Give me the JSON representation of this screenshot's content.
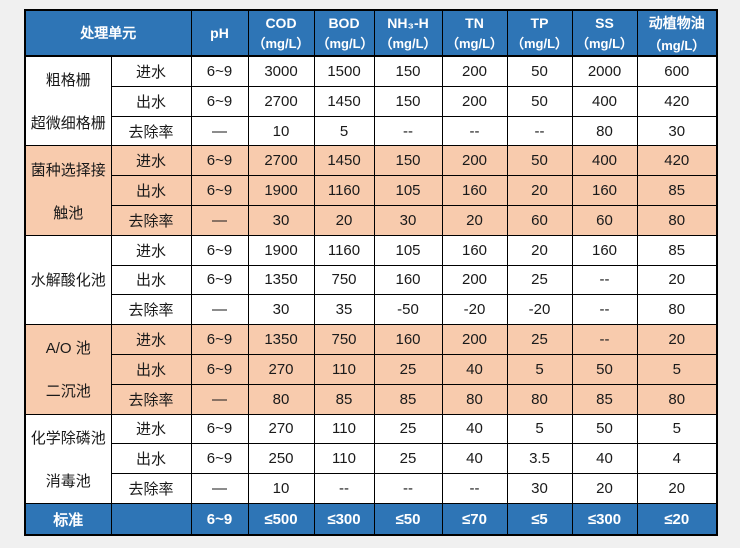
{
  "colors": {
    "header_bg": "#2E75B6",
    "header_text": "#FFFFFF",
    "band_bg": "#F8CBAD",
    "row_bg": "#FFFFFF",
    "border": "#000000",
    "page_bg": "#F0F0F0",
    "body_text": "#1A1A1A"
  },
  "table": {
    "header": {
      "unit_label": "处理单元",
      "columns": [
        {
          "id": "ph",
          "line1": "pH",
          "line2": ""
        },
        {
          "id": "cod",
          "line1": "COD",
          "line2": "（mg/L）"
        },
        {
          "id": "bod",
          "line1": "BOD",
          "line2": "（mg/L）"
        },
        {
          "id": "nh3h",
          "line1": "NH₃-H",
          "line2": "（mg/L）"
        },
        {
          "id": "tn",
          "line1": "TN",
          "line2": "（mg/L）"
        },
        {
          "id": "tp",
          "line1": "TP",
          "line2": "（mg/L）"
        },
        {
          "id": "ss",
          "line1": "SS",
          "line2": "（mg/L）"
        },
        {
          "id": "oil",
          "line1": "动植物油",
          "line2": "（mg/L）"
        }
      ]
    },
    "groups": [
      {
        "unit_lines": [
          "粗格栅",
          "超微细格栅"
        ],
        "band": false,
        "rows": [
          {
            "label": "进水",
            "values": [
              "6~9",
              "3000",
              "1500",
              "150",
              "200",
              "50",
              "2000",
              "600"
            ]
          },
          {
            "label": "出水",
            "values": [
              "6~9",
              "2700",
              "1450",
              "150",
              "200",
              "50",
              "400",
              "420"
            ]
          },
          {
            "label": "去除率",
            "values": [
              "—",
              "10",
              "5",
              "--",
              "--",
              "--",
              "80",
              "30"
            ]
          }
        ]
      },
      {
        "unit_lines": [
          "菌种选择接",
          "触池"
        ],
        "band": true,
        "rows": [
          {
            "label": "进水",
            "values": [
              "6~9",
              "2700",
              "1450",
              "150",
              "200",
              "50",
              "400",
              "420"
            ]
          },
          {
            "label": "出水",
            "values": [
              "6~9",
              "1900",
              "1160",
              "105",
              "160",
              "20",
              "160",
              "85"
            ]
          },
          {
            "label": "去除率",
            "values": [
              "—",
              "30",
              "20",
              "30",
              "20",
              "60",
              "60",
              "80"
            ]
          }
        ]
      },
      {
        "unit_lines": [
          "水解酸化池"
        ],
        "band": false,
        "rows": [
          {
            "label": "进水",
            "values": [
              "6~9",
              "1900",
              "1160",
              "105",
              "160",
              "20",
              "160",
              "85"
            ]
          },
          {
            "label": "出水",
            "values": [
              "6~9",
              "1350",
              "750",
              "160",
              "200",
              "25",
              "--",
              "20"
            ]
          },
          {
            "label": "去除率",
            "values": [
              "—",
              "30",
              "35",
              "-50",
              "-20",
              "-20",
              "--",
              "80"
            ]
          }
        ]
      },
      {
        "unit_lines": [
          "A/O 池",
          "二沉池"
        ],
        "band": true,
        "rows": [
          {
            "label": "进水",
            "values": [
              "6~9",
              "1350",
              "750",
              "160",
              "200",
              "25",
              "--",
              "20"
            ]
          },
          {
            "label": "出水",
            "values": [
              "6~9",
              "270",
              "110",
              "25",
              "40",
              "5",
              "50",
              "5"
            ]
          },
          {
            "label": "去除率",
            "values": [
              "—",
              "80",
              "85",
              "85",
              "80",
              "80",
              "85",
              "80"
            ]
          }
        ]
      },
      {
        "unit_lines": [
          "化学除磷池",
          "消毒池"
        ],
        "band": false,
        "rows": [
          {
            "label": "进水",
            "values": [
              "6~9",
              "270",
              "110",
              "25",
              "40",
              "5",
              "50",
              "5"
            ]
          },
          {
            "label": "出水",
            "values": [
              "6~9",
              "250",
              "110",
              "25",
              "40",
              "3.5",
              "40",
              "4"
            ]
          },
          {
            "label": "去除率",
            "values": [
              "—",
              "10",
              "--",
              "--",
              "--",
              "30",
              "20",
              "20"
            ]
          }
        ]
      }
    ],
    "footer": {
      "label": "标准",
      "values": [
        "6~9",
        "≤500",
        "≤300",
        "≤50",
        "≤70",
        "≤5",
        "≤300",
        "≤20"
      ]
    }
  }
}
